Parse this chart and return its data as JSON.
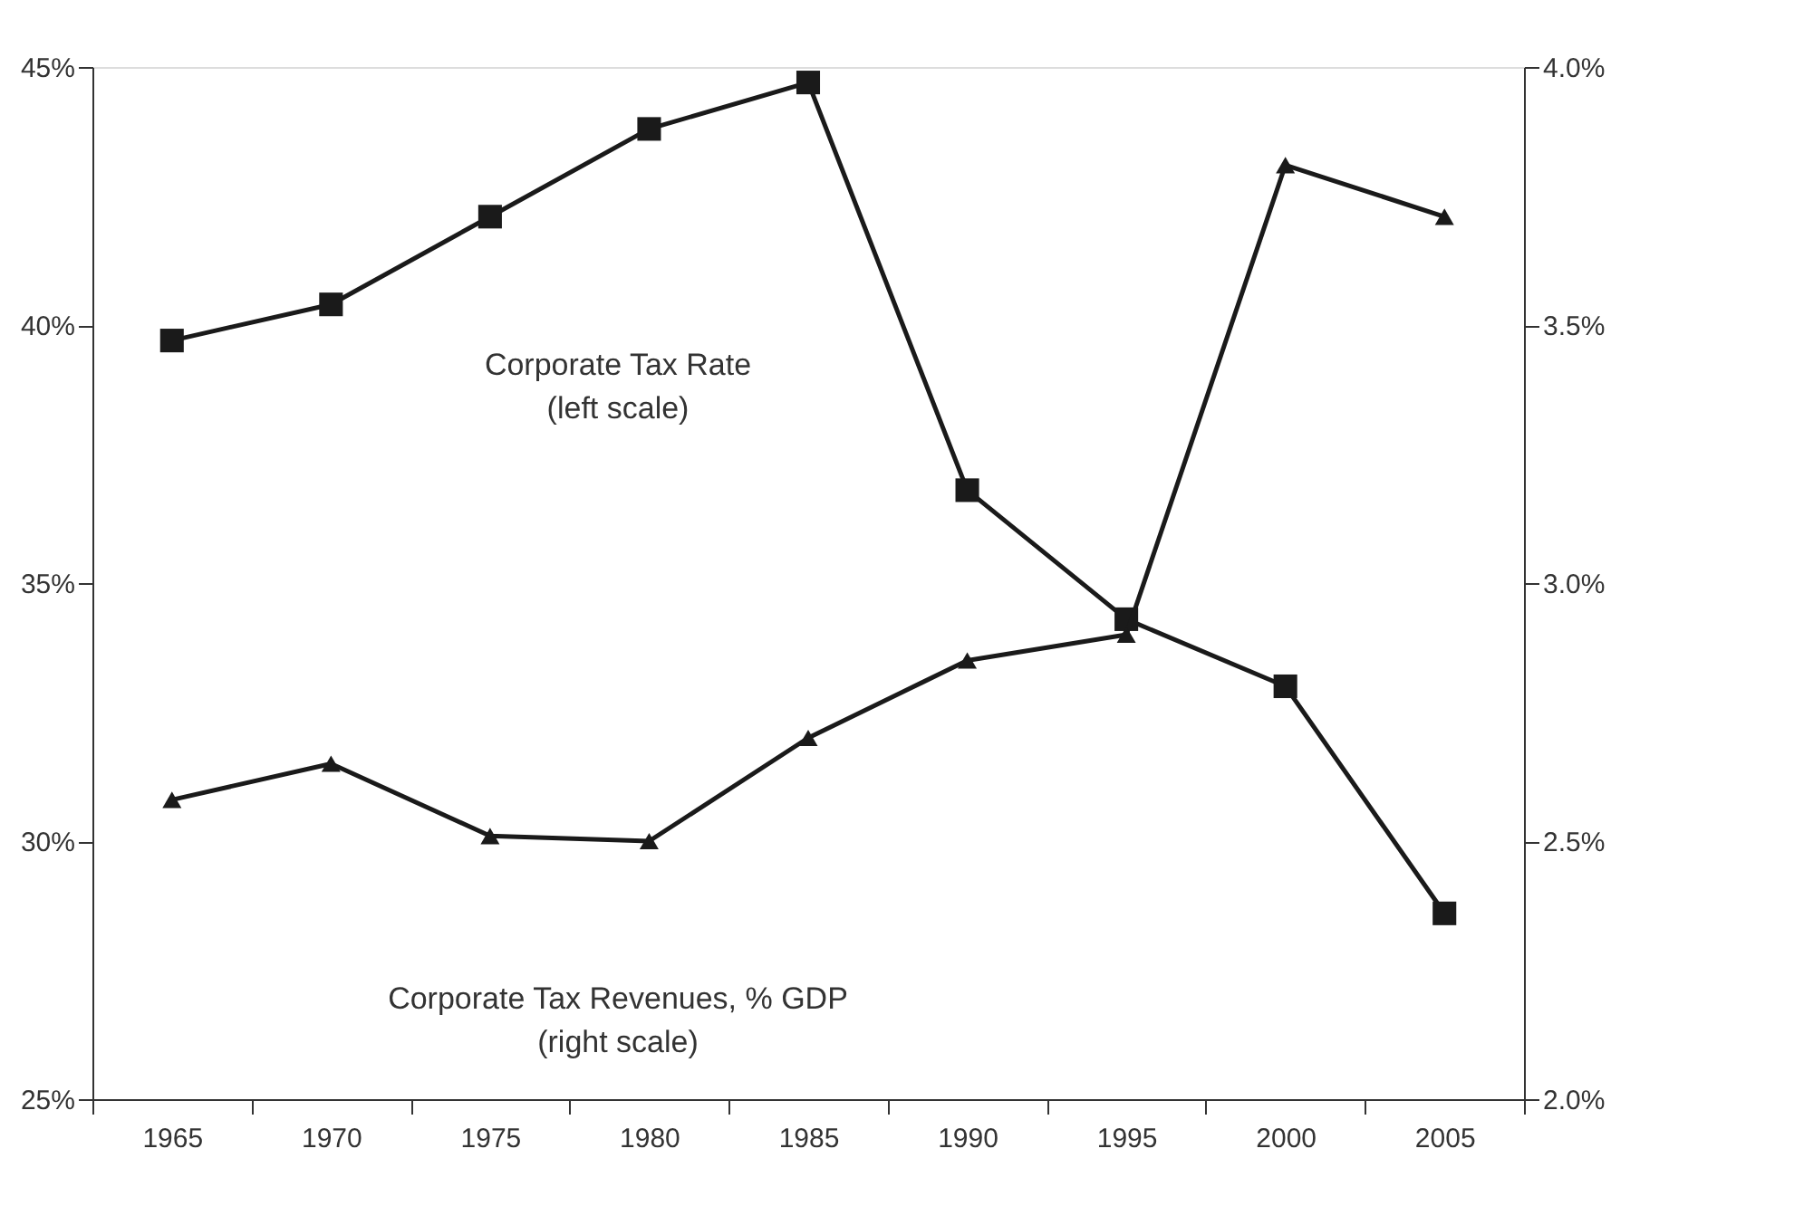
{
  "chart_data": {
    "type": "line",
    "categories": [
      "1965",
      "1970",
      "1975",
      "1980",
      "1985",
      "1990",
      "1995",
      "2000",
      "2005"
    ],
    "series": [
      {
        "color": "#1a1a1a",
        "marker": "square",
        "values": [
          39.7,
          40.4,
          42.1,
          43.8,
          44.7,
          36.8,
          34.3,
          33.0,
          28.6
        ]
      },
      {
        "color": "#1a1a1a",
        "marker": "triangle",
        "axis": "y2",
        "values": [
          2.58,
          2.65,
          2.51,
          2.5,
          2.7,
          2.85,
          2.9,
          3.81,
          3.71
        ]
      }
    ],
    "ylim": [
      25,
      45
    ],
    "yticks": [
      {
        "value": 25,
        "label": "25%"
      },
      {
        "value": 30,
        "label": "30%"
      },
      {
        "value": 35,
        "label": "35%"
      },
      {
        "value": 40,
        "label": "40%"
      },
      {
        "value": 45,
        "label": "45%"
      }
    ],
    "y2lim": [
      2.0,
      4.0
    ],
    "y2ticks": [
      {
        "value": 2.0,
        "label": "2.0%"
      },
      {
        "value": 2.5,
        "label": "2.5%"
      },
      {
        "value": 3.0,
        "label": "3.0%"
      },
      {
        "value": 3.5,
        "label": "3.5%"
      },
      {
        "value": 4.0,
        "label": "4.0%"
      }
    ],
    "annotations": [
      "Corporate Tax Rate\n(left scale)",
      "Corporate Tax Revenues, % GDP\n(right scale)"
    ],
    "grid": false,
    "line_style": "solid"
  }
}
